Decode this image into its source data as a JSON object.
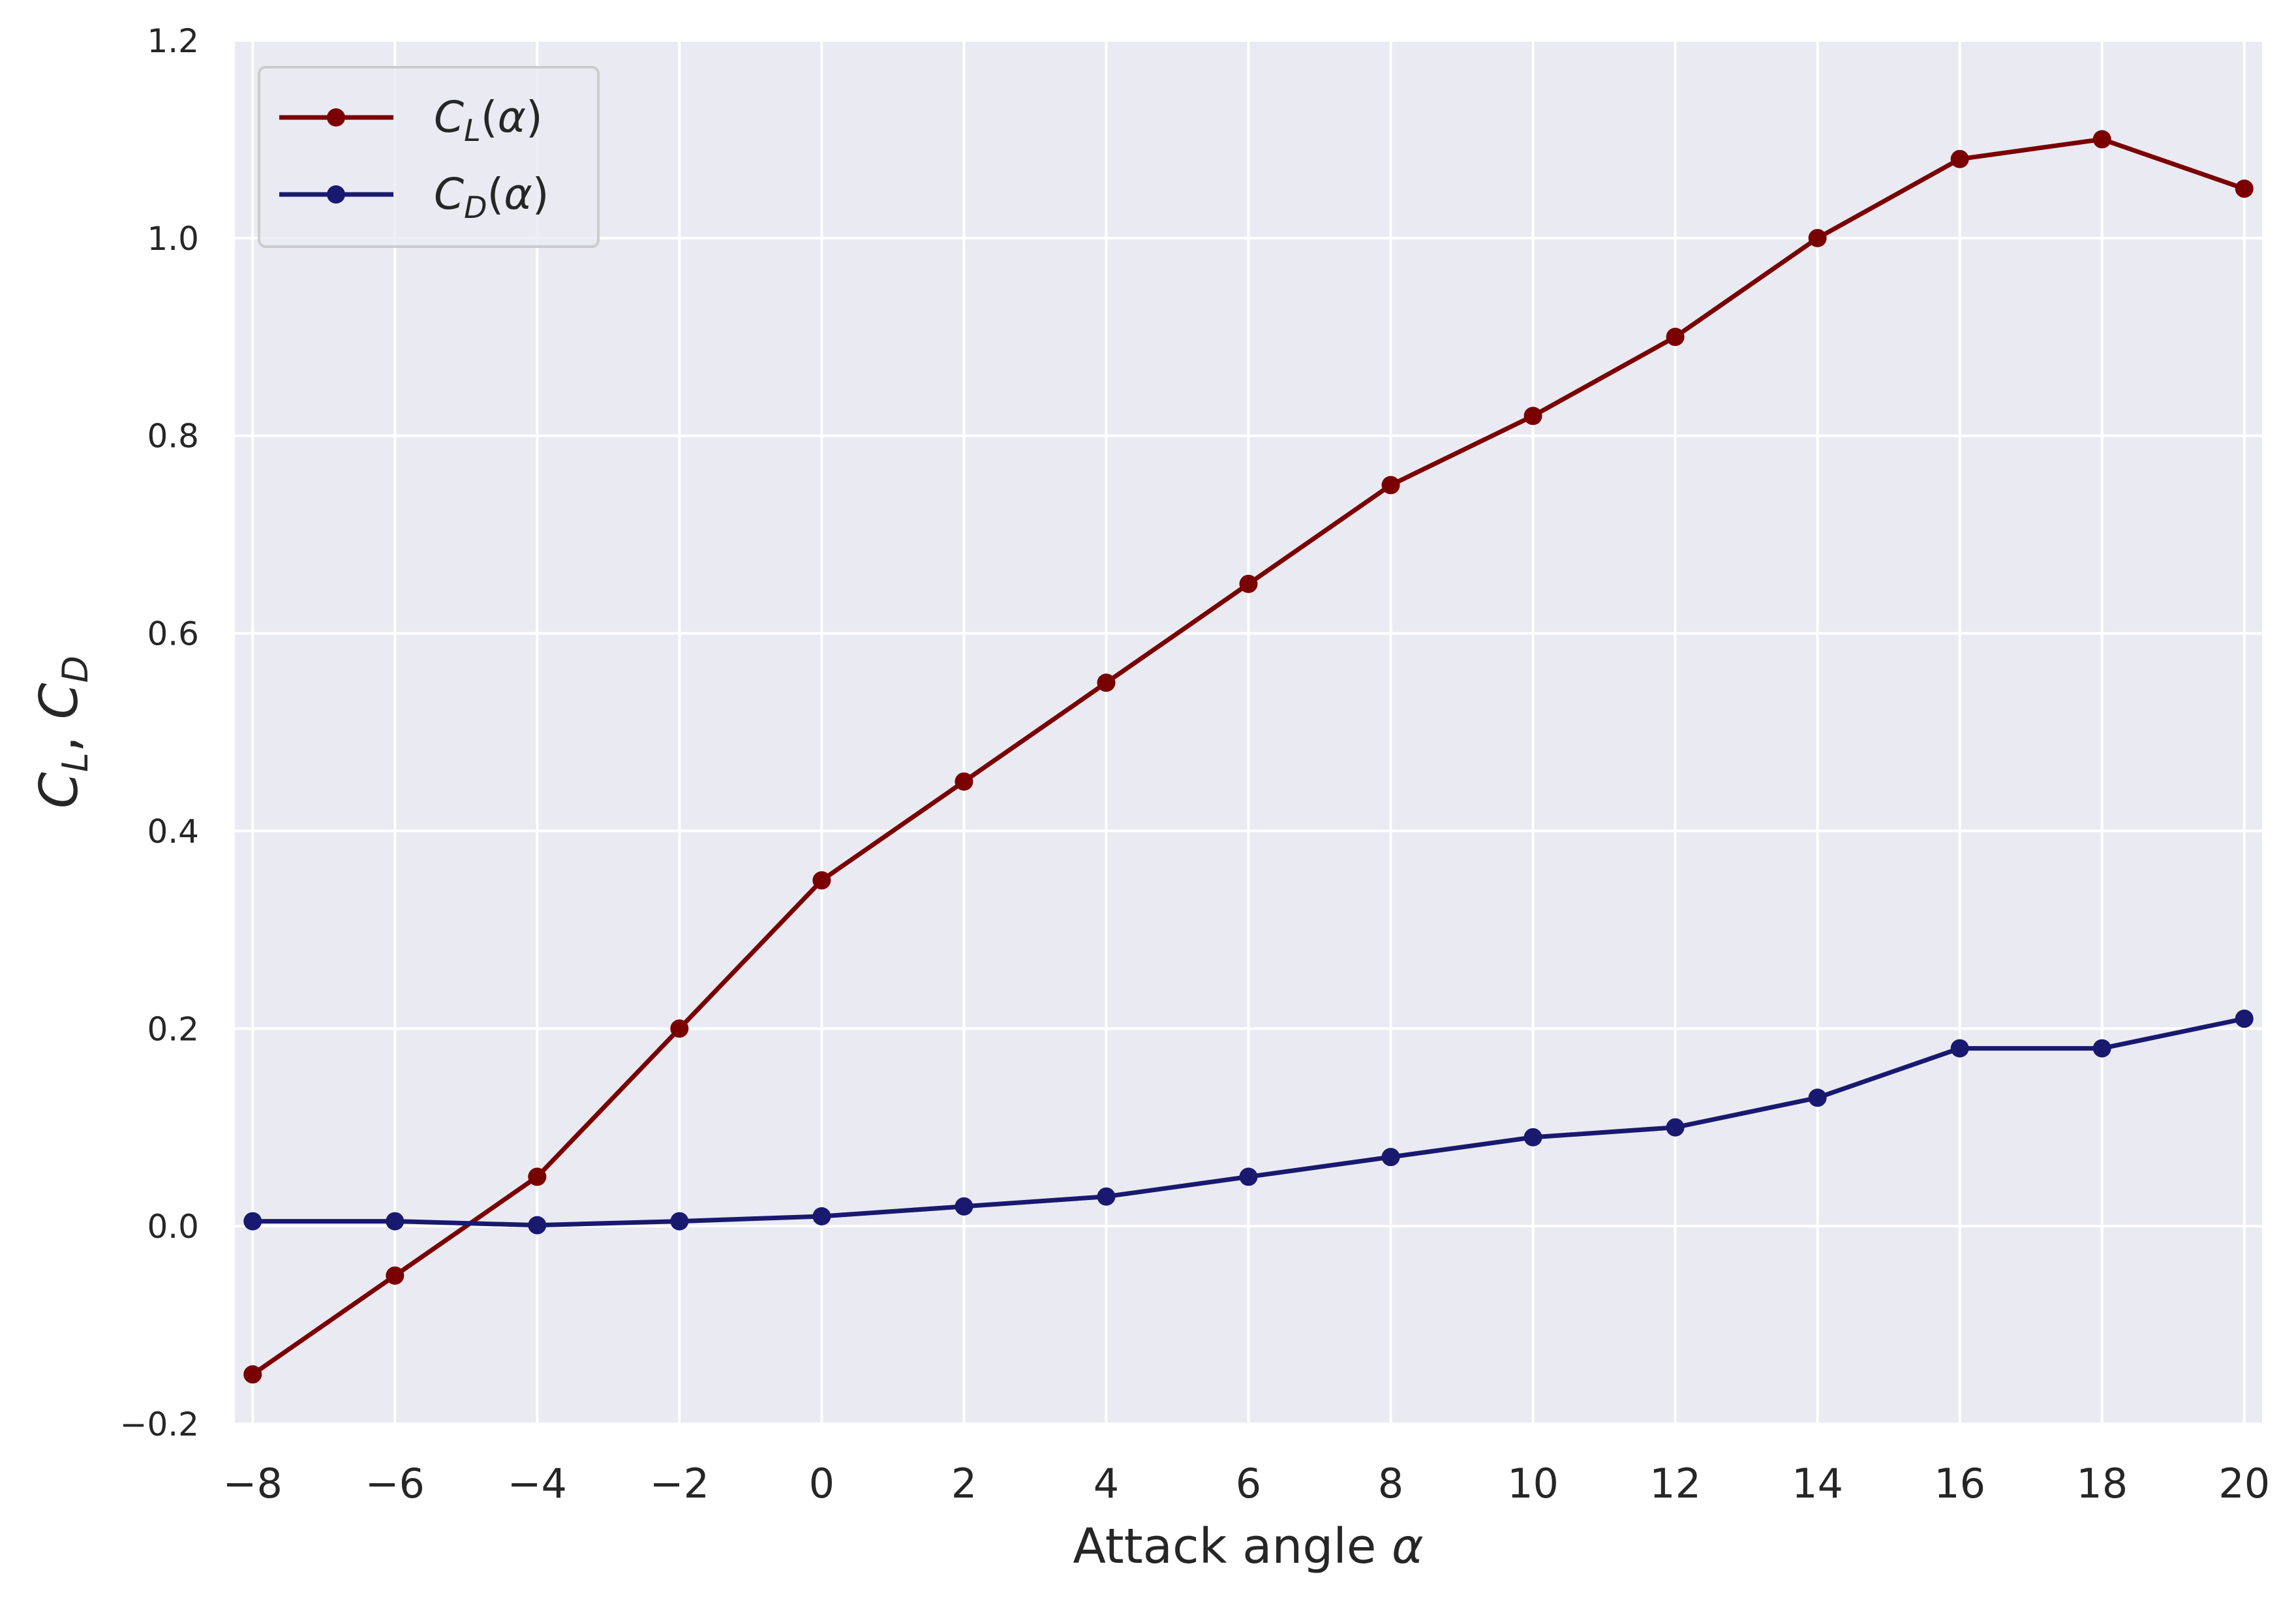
{
  "chart_data": {
    "type": "line",
    "xlabel": "Attack angle α",
    "ylabel": "C_L, C_D",
    "xlim": [
      -8.25,
      20.25
    ],
    "ylim": [
      -0.2,
      1.2
    ],
    "grid": true,
    "legend_position": "top-left",
    "x_ticks": [
      -8,
      -6,
      -4,
      -2,
      0,
      2,
      4,
      6,
      8,
      10,
      12,
      14,
      16,
      18,
      20
    ],
    "x_tick_labels": [
      "−8",
      "−6",
      "−4",
      "−2",
      "0",
      "2",
      "4",
      "6",
      "8",
      "10",
      "12",
      "14",
      "16",
      "18",
      "20"
    ],
    "y_ticks": [
      -0.2,
      0.0,
      0.2,
      0.4,
      0.6,
      0.8,
      1.0,
      1.2
    ],
    "y_tick_labels": [
      "−0.2",
      "0.0",
      "0.2",
      "0.4",
      "0.6",
      "0.8",
      "1.0",
      "1.2"
    ],
    "x": [
      -8,
      -6,
      -4,
      -2,
      0,
      2,
      4,
      6,
      8,
      10,
      12,
      14,
      16,
      18,
      20
    ],
    "series": [
      {
        "name": "C_L(α)",
        "color": "#7a0000",
        "values": [
          -0.15,
          -0.05,
          0.05,
          0.2,
          0.35,
          0.45,
          0.55,
          0.65,
          0.75,
          0.82,
          0.9,
          1.0,
          1.08,
          1.1,
          1.05
        ]
      },
      {
        "name": "C_D(α)",
        "color": "#191970",
        "values": [
          0.005,
          0.005,
          0.001,
          0.005,
          0.01,
          0.02,
          0.03,
          0.05,
          0.07,
          0.09,
          0.1,
          0.13,
          0.18,
          0.18,
          0.21
        ]
      }
    ],
    "plot_background": "#eaeaf2",
    "grid_color": "#ffffff"
  }
}
